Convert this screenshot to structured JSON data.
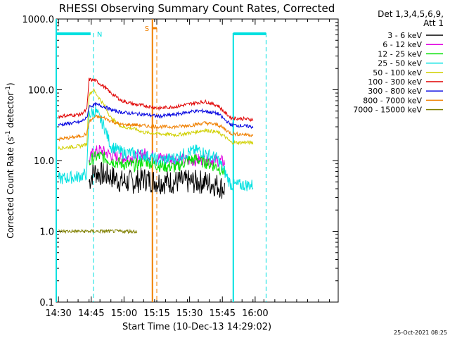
{
  "chart_data": {
    "type": "line",
    "title": "RHESSI Observing Summary Count Rates, Corrected",
    "xlabel": "Start Time (10-Dec-13 14:29:02)",
    "ylabel_main": "Corrected Count Rate (s",
    "ylabel_sup1": "-1",
    "ylabel_mid": " detector",
    "ylabel_sup2": "-1",
    "ylabel_end": ")",
    "yscale": "log",
    "ylim": [
      0.1,
      1000
    ],
    "y_ticks": [
      {
        "v": 0.1,
        "label": "0.1"
      },
      {
        "v": 1,
        "label": "1.0"
      },
      {
        "v": 10,
        "label": "10.0"
      },
      {
        "v": 100,
        "label": "100.0"
      },
      {
        "v": 1000,
        "label": "1000.0"
      }
    ],
    "xlim_min": [
      0,
      129
    ],
    "x_ticks": [
      {
        "m": 1,
        "label": "14:30"
      },
      {
        "m": 16,
        "label": "14:45"
      },
      {
        "m": 31,
        "label": "15:00"
      },
      {
        "m": 46,
        "label": "15:15"
      },
      {
        "m": 61,
        "label": "15:30"
      },
      {
        "m": 76,
        "label": "15:45"
      },
      {
        "m": 91,
        "label": "16:00"
      }
    ],
    "legend_header1": "Det 1,3,4,5,6,9,",
    "legend_header2": "Att 1",
    "legend_placement": "top-right",
    "series": [
      {
        "name": "3 - 6 keV",
        "color": "#000000",
        "points": [
          [
            15,
            5
          ],
          [
            17,
            7
          ],
          [
            20,
            6.5
          ],
          [
            25,
            6
          ],
          [
            30,
            5
          ],
          [
            36,
            5
          ],
          [
            40,
            5.5
          ],
          [
            47,
            5
          ],
          [
            55,
            5
          ],
          [
            62,
            5
          ],
          [
            68,
            5
          ],
          [
            74,
            4.5
          ],
          [
            77,
            4
          ]
        ]
      },
      {
        "name": "6 - 12 keV",
        "color": "#e000e0",
        "points": [
          [
            15,
            10
          ],
          [
            17,
            13
          ],
          [
            20,
            14
          ],
          [
            25,
            12
          ],
          [
            30,
            11
          ],
          [
            36,
            11
          ],
          [
            40,
            12.5
          ],
          [
            47,
            11
          ],
          [
            55,
            10.5
          ],
          [
            62,
            10
          ],
          [
            68,
            10.5
          ],
          [
            74,
            10
          ],
          [
            77,
            9.5
          ]
        ]
      },
      {
        "name": "12 - 25 keV",
        "color": "#00e000",
        "points": [
          [
            15,
            9
          ],
          [
            17,
            11
          ],
          [
            20,
            11.5
          ],
          [
            25,
            10
          ],
          [
            30,
            9
          ],
          [
            36,
            8.5
          ],
          [
            40,
            10
          ],
          [
            47,
            8.5
          ],
          [
            55,
            8
          ],
          [
            60,
            10
          ],
          [
            64,
            10.5
          ],
          [
            70,
            9
          ],
          [
            74,
            8
          ],
          [
            77,
            7
          ]
        ]
      },
      {
        "name": "25 - 50 keV",
        "color": "#00e0e0",
        "points": [
          [
            1,
            5.5
          ],
          [
            11,
            6
          ],
          [
            14,
            6.5
          ],
          [
            15,
            45
          ],
          [
            18,
            50
          ],
          [
            22,
            30
          ],
          [
            25,
            16
          ],
          [
            30,
            13
          ],
          [
            36,
            12.5
          ],
          [
            40,
            12
          ],
          [
            47,
            10
          ],
          [
            55,
            11
          ],
          [
            60,
            13
          ],
          [
            65,
            14
          ],
          [
            70,
            12
          ],
          [
            74,
            10.5
          ],
          [
            77,
            7
          ],
          [
            80,
            4.5
          ],
          [
            90,
            4.5
          ]
        ]
      },
      {
        "name": "50 - 100 keV",
        "color": "#d0d000",
        "points": [
          [
            1,
            15
          ],
          [
            11,
            16
          ],
          [
            14,
            17
          ],
          [
            15,
            85
          ],
          [
            17,
            100
          ],
          [
            22,
            60
          ],
          [
            25,
            40
          ],
          [
            30,
            30
          ],
          [
            36,
            28
          ],
          [
            40,
            25
          ],
          [
            47,
            24
          ],
          [
            55,
            23
          ],
          [
            63,
            25
          ],
          [
            68,
            27
          ],
          [
            74,
            25
          ],
          [
            77,
            22
          ],
          [
            80,
            18
          ],
          [
            90,
            18
          ]
        ]
      },
      {
        "name": "100 - 300 keV",
        "color": "#e00000",
        "points": [
          [
            1,
            42
          ],
          [
            11,
            45
          ],
          [
            14,
            52
          ],
          [
            15,
            140
          ],
          [
            18,
            135
          ],
          [
            22,
            110
          ],
          [
            25,
            90
          ],
          [
            30,
            70
          ],
          [
            36,
            62
          ],
          [
            40,
            60
          ],
          [
            47,
            55
          ],
          [
            55,
            58
          ],
          [
            63,
            65
          ],
          [
            68,
            68
          ],
          [
            74,
            60
          ],
          [
            77,
            48
          ],
          [
            80,
            40
          ],
          [
            90,
            38
          ]
        ]
      },
      {
        "name": "300 - 800 keV",
        "color": "#0000e0",
        "points": [
          [
            1,
            32
          ],
          [
            11,
            35
          ],
          [
            14,
            40
          ],
          [
            15,
            58
          ],
          [
            18,
            62
          ],
          [
            22,
            58
          ],
          [
            25,
            52
          ],
          [
            30,
            48
          ],
          [
            36,
            46
          ],
          [
            40,
            45
          ],
          [
            47,
            42
          ],
          [
            55,
            45
          ],
          [
            63,
            50
          ],
          [
            68,
            50
          ],
          [
            74,
            46
          ],
          [
            77,
            38
          ],
          [
            80,
            32
          ],
          [
            90,
            30
          ]
        ]
      },
      {
        "name": "800 - 7000 keV",
        "color": "#f08000",
        "points": [
          [
            1,
            20
          ],
          [
            11,
            22
          ],
          [
            14,
            24
          ],
          [
            15,
            35
          ],
          [
            18,
            42
          ],
          [
            22,
            40
          ],
          [
            25,
            36
          ],
          [
            30,
            32
          ],
          [
            36,
            32
          ],
          [
            40,
            31
          ],
          [
            47,
            30
          ],
          [
            55,
            30
          ],
          [
            63,
            32
          ],
          [
            68,
            34
          ],
          [
            74,
            32
          ],
          [
            77,
            28
          ],
          [
            80,
            24
          ],
          [
            90,
            23
          ]
        ]
      },
      {
        "name": "7000 - 15000 keV",
        "color": "#808000",
        "points": [
          [
            1,
            1
          ],
          [
            11,
            1
          ],
          [
            14,
            1
          ],
          [
            20,
            1
          ],
          [
            30,
            1
          ],
          [
            37,
            1
          ]
        ]
      }
    ],
    "annotations": [
      {
        "label": "N",
        "color": "#00e0e0",
        "m": 17
      },
      {
        "label": "S",
        "color": "#f08000",
        "m": 45
      }
    ],
    "footer": "25-Oct-2021 08:25"
  }
}
